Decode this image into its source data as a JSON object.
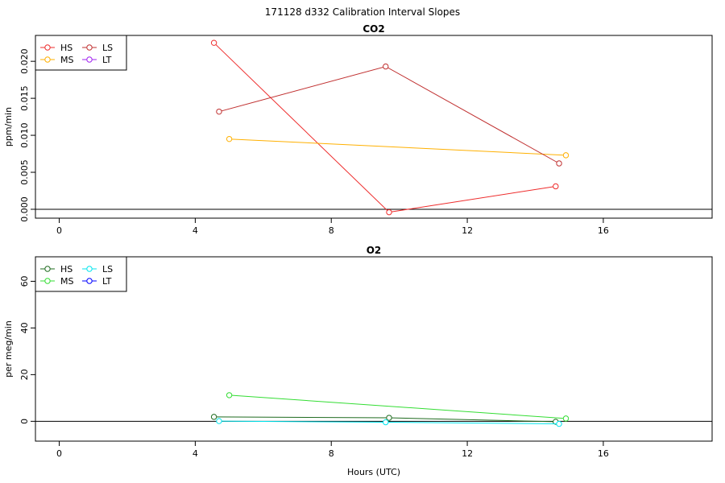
{
  "page": {
    "title": "171128   d332   Calibration Interval Slopes"
  },
  "chart_data": [
    {
      "type": "line",
      "title": "CO2",
      "ylabel": "ppm/min",
      "xlabel": "",
      "xlim": [
        -0.7,
        19.2
      ],
      "ylim": [
        -0.0012,
        0.0235
      ],
      "x_ticks": [
        0,
        4,
        8,
        12,
        16
      ],
      "y_ticks": [
        0.0,
        0.005,
        0.01,
        0.015,
        0.02
      ],
      "y_tick_labels": [
        "0.000",
        "0.005",
        "0.010",
        "0.015",
        "0.020"
      ],
      "reference_line": 0,
      "legend_position": "top-left",
      "legend": [
        "HS",
        "MS",
        "LS",
        "LT"
      ],
      "series": [
        {
          "name": "HS",
          "color": "#ee2c2c",
          "x": [
            4.55,
            9.7,
            14.6
          ],
          "y": [
            0.0225,
            -0.0004,
            0.0031
          ]
        },
        {
          "name": "MS",
          "color": "#ffb000",
          "x": [
            5.0,
            14.9
          ],
          "y": [
            0.0095,
            0.0073
          ]
        },
        {
          "name": "LS",
          "color": "#c03030",
          "x": [
            4.7,
            9.6,
            14.7
          ],
          "y": [
            0.0132,
            0.0193,
            0.0062
          ]
        },
        {
          "name": "LT",
          "color": "#a020f0",
          "x": [],
          "y": []
        }
      ]
    },
    {
      "type": "line",
      "title": "O2",
      "ylabel": "per meg/min",
      "xlabel": "Hours (UTC)",
      "xlim": [
        -0.7,
        19.2
      ],
      "ylim": [
        -8.5,
        70.5
      ],
      "x_ticks": [
        0,
        4,
        8,
        12,
        16
      ],
      "y_ticks": [
        0,
        20,
        40,
        60
      ],
      "y_tick_labels": [
        "0",
        "20",
        "40",
        "60"
      ],
      "reference_line": 0,
      "legend_position": "top-left",
      "legend": [
        "HS",
        "MS",
        "LS",
        "LT"
      ],
      "series": [
        {
          "name": "HS",
          "color": "#1f6b1f",
          "x": [
            4.55,
            9.7,
            14.6
          ],
          "y": [
            1.9,
            1.5,
            -0.2
          ]
        },
        {
          "name": "MS",
          "color": "#33dd33",
          "x": [
            5.0,
            14.9
          ],
          "y": [
            11.2,
            1.2
          ]
        },
        {
          "name": "LS",
          "color": "#00e5ee",
          "x": [
            4.7,
            9.6,
            14.7
          ],
          "y": [
            0.1,
            -0.4,
            -1.1
          ]
        },
        {
          "name": "LT",
          "color": "#0000ff",
          "x": [],
          "y": []
        }
      ]
    }
  ]
}
